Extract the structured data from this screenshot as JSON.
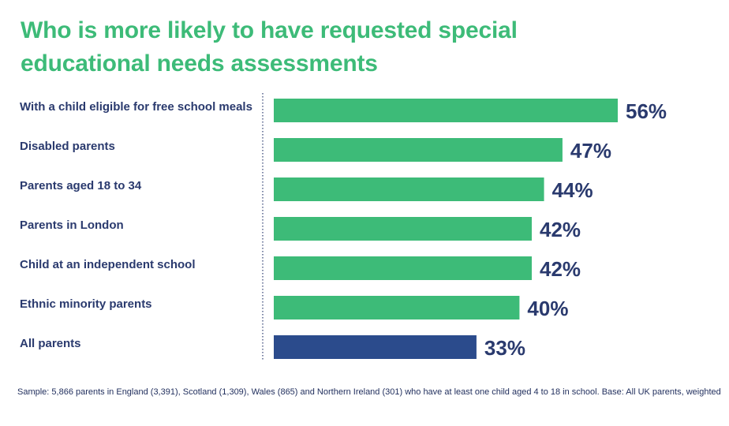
{
  "chart_data": {
    "type": "bar",
    "orientation": "horizontal",
    "title": "Who is more likely to have requested special educational needs assessments",
    "categories": [
      "With a child eligible for free school meals",
      "Disabled parents",
      "Parents aged 18 to 34",
      "Parents in London",
      "Child at an independent school",
      "Ethnic minority parents",
      "All parents"
    ],
    "values": [
      56,
      47,
      44,
      42,
      42,
      40,
      33
    ],
    "value_labels": [
      "56%",
      "47%",
      "44%",
      "42%",
      "42%",
      "40%",
      "33%"
    ],
    "highlight_index": 6,
    "unit": "%",
    "xlim": [
      0,
      56
    ],
    "grid": false,
    "legend": "none",
    "footnote": "Sample: 5,866 parents in England (3,391), Scotland (1,309), Wales (865) and Northern Ireland (301) who have at least one child aged 4 to 18 in school. Base: All UK parents, weighted"
  },
  "colors": {
    "title": "#3dbb78",
    "bar": "#3dbb78",
    "highlight_bar": "#2b4b8c",
    "text": "#2a3a6e"
  }
}
